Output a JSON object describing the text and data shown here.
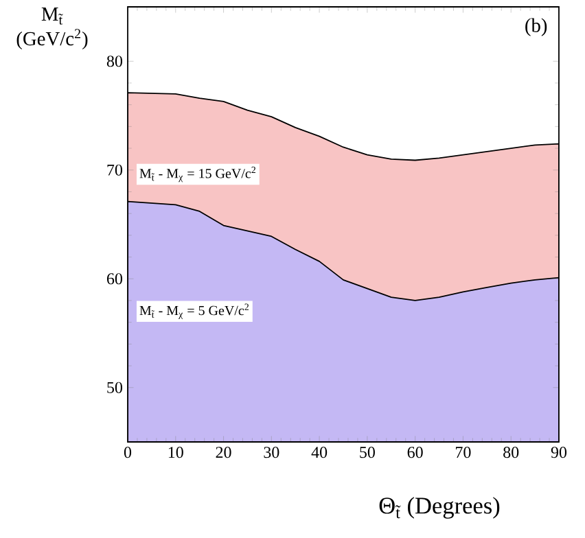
{
  "chart_data": {
    "type": "area",
    "title": "(b)",
    "xlabel": "Θ$_{t̃}$  (Degrees)",
    "ylabel": "M$_{t̃}$ (GeV/c$^{2}$)",
    "x": [
      0,
      10,
      15,
      20,
      25,
      30,
      35,
      40,
      45,
      50,
      55,
      60,
      65,
      70,
      75,
      80,
      85,
      90
    ],
    "series": [
      {
        "color": "#f8c4c4",
        "values": [
          77.1,
          77.0,
          76.6,
          76.3,
          75.5,
          74.9,
          73.9,
          73.1,
          72.1,
          71.4,
          71.0,
          70.9,
          71.1,
          71.4,
          71.7,
          72.0,
          72.3,
          72.4
        ]
      },
      {
        "color": "#c4b8f4",
        "values": [
          67.1,
          66.8,
          66.2,
          64.9,
          64.4,
          63.9,
          62.7,
          61.6,
          59.9,
          59.1,
          58.3,
          58.0,
          58.3,
          58.8,
          59.2,
          59.6,
          59.9,
          60.1
        ]
      }
    ],
    "annotations": [
      "M$_{t̃}$ - M$_{χ}$ = 15 GeV/c$^{2}$",
      "M$_{t̃}$ - M$_{χ}$ = 5 GeV/c$^{2}$"
    ],
    "xlim": [
      0,
      90
    ],
    "ylim": [
      45,
      85
    ],
    "xticks": [
      0,
      10,
      20,
      30,
      40,
      50,
      60,
      70,
      80,
      90
    ],
    "yticks": [
      50,
      60,
      70,
      80
    ],
    "grid": false
  }
}
